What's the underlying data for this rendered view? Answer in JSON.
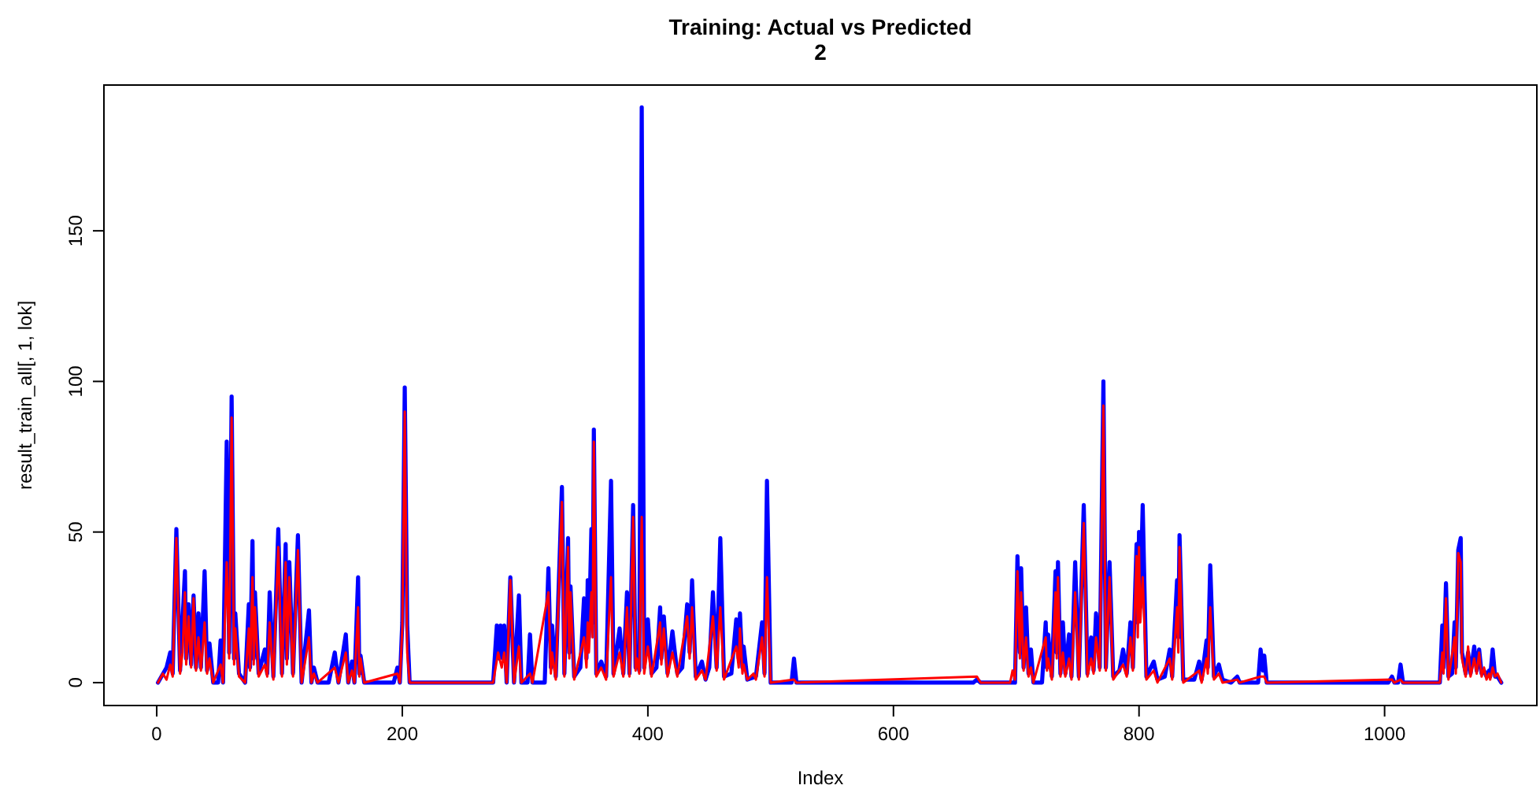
{
  "chart_data": {
    "type": "line",
    "title": "Training: Actual vs Predicted",
    "subtitle": "2",
    "xlabel": "Index",
    "ylabel": "result_train_all[, 1, lok]",
    "xlim": [
      -43,
      1124
    ],
    "ylim": [
      -7.6,
      198.4
    ],
    "xticks": [
      0,
      200,
      400,
      600,
      800,
      1000
    ],
    "yticks": [
      0,
      50,
      100,
      150
    ],
    "grid": false,
    "marker": "none",
    "line_style": "solid",
    "series": [
      {
        "color": "#0000ff",
        "x": [
          1,
          8,
          11,
          13,
          16,
          19,
          23,
          24,
          26,
          28,
          30,
          32,
          34,
          36,
          39,
          41,
          43,
          46,
          50,
          52,
          54,
          57,
          59,
          61,
          63,
          64,
          67,
          72,
          75,
          76,
          78,
          79,
          80,
          83,
          88,
          90,
          92,
          95,
          99,
          102,
          105,
          106,
          108,
          111,
          115,
          118,
          124,
          126,
          128,
          131,
          140,
          145,
          148,
          154,
          156,
          159,
          161,
          164,
          165,
          166,
          169,
          193,
          196,
          198,
          200,
          202,
          204,
          206,
          274,
          277,
          279,
          280,
          282,
          283,
          285,
          288,
          291,
          295,
          297,
          302,
          304,
          306,
          316,
          319,
          321,
          322,
          325,
          330,
          332,
          335,
          336,
          337,
          340,
          345,
          348,
          350,
          351,
          352,
          354,
          355,
          356,
          358,
          362,
          366,
          370,
          372,
          377,
          380,
          383,
          385,
          388,
          390,
          391,
          393,
          395,
          397,
          400,
          403,
          407,
          410,
          411,
          413,
          416,
          420,
          424,
          428,
          432,
          434,
          436,
          439,
          444,
          447,
          450,
          453,
          456,
          459,
          462,
          468,
          472,
          474,
          475,
          477,
          478,
          481,
          488,
          493,
          495,
          497,
          500,
          517,
          519,
          521,
          665,
          668,
          671,
          699,
          701,
          703,
          704,
          706,
          708,
          710,
          712,
          714,
          721,
          724,
          725,
          726,
          729,
          732,
          733,
          734,
          736,
          738,
          740,
          743,
          745,
          748,
          751,
          755,
          758,
          761,
          763,
          765,
          768,
          771,
          773,
          776,
          779,
          784,
          787,
          790,
          793,
          795,
          798,
          799,
          800,
          801,
          803,
          806,
          812,
          815,
          821,
          825,
          827,
          831,
          832,
          833,
          836,
          845,
          849,
          851,
          855,
          856,
          858,
          861,
          865,
          868,
          875,
          880,
          882,
          897,
          899,
          901,
          902,
          904,
          1003,
          1006,
          1008,
          1011,
          1013,
          1015,
          1045,
          1047,
          1048,
          1050,
          1052,
          1055,
          1057,
          1058,
          1060,
          1062,
          1063,
          1064,
          1066,
          1068,
          1070,
          1073,
          1075,
          1077,
          1079,
          1081,
          1083,
          1085,
          1086,
          1088,
          1090,
          1092,
          1095
        ],
        "values": [
          0,
          5,
          10,
          3,
          51,
          4,
          37,
          8,
          26,
          6,
          29,
          5,
          23,
          5,
          37,
          4,
          13,
          0,
          0,
          14,
          0,
          80,
          10,
          95,
          8,
          23,
          3,
          0,
          26,
          5,
          47,
          8,
          30,
          3,
          11,
          3,
          30,
          2,
          51,
          3,
          46,
          8,
          40,
          3,
          49,
          0,
          24,
          0,
          5,
          0,
          0,
          10,
          0,
          16,
          0,
          7,
          0,
          35,
          3,
          9,
          0,
          0,
          5,
          0,
          20,
          98,
          19,
          0,
          0,
          19,
          8,
          19,
          8,
          19,
          0,
          35,
          0,
          29,
          0,
          0,
          16,
          0,
          0,
          38,
          5,
          19,
          2,
          65,
          3,
          48,
          10,
          32,
          2,
          5,
          28,
          8,
          34,
          15,
          51,
          20,
          84,
          3,
          7,
          2,
          67,
          3,
          18,
          3,
          30,
          3,
          59,
          5,
          12,
          4,
          191,
          5,
          21,
          3,
          5,
          25,
          8,
          22,
          3,
          17,
          3,
          5,
          26,
          10,
          34,
          2,
          7,
          1,
          5,
          30,
          5,
          48,
          2,
          3,
          21,
          8,
          23,
          5,
          12,
          1,
          2,
          20,
          3,
          67,
          0,
          0,
          8,
          0,
          0,
          1,
          0,
          0,
          42,
          10,
          38,
          5,
          25,
          3,
          11,
          0,
          0,
          20,
          5,
          16,
          2,
          37,
          10,
          40,
          3,
          20,
          3,
          16,
          2,
          40,
          2,
          59,
          3,
          15,
          4,
          23,
          5,
          100,
          5,
          40,
          2,
          4,
          11,
          3,
          20,
          5,
          46,
          20,
          50,
          25,
          59,
          2,
          7,
          1,
          2,
          11,
          2,
          34,
          15,
          49,
          1,
          1,
          7,
          1,
          14,
          5,
          39,
          2,
          6,
          1,
          0,
          2,
          0,
          0,
          11,
          4,
          9,
          0,
          0,
          2,
          0,
          0,
          6,
          0,
          0,
          19,
          5,
          33,
          2,
          3,
          20,
          5,
          44,
          48,
          10,
          8,
          3,
          10,
          3,
          12,
          4,
          11,
          3,
          4,
          2,
          4,
          2,
          11,
          2,
          2,
          0
        ]
      },
      {
        "color": "#ff0000",
        "x": [
          1,
          5,
          8,
          11,
          13,
          16,
          19,
          21,
          23,
          24,
          26,
          28,
          30,
          32,
          34,
          36,
          39,
          41,
          43,
          46,
          52,
          54,
          57,
          59,
          61,
          63,
          64,
          67,
          72,
          75,
          76,
          78,
          79,
          80,
          83,
          88,
          90,
          92,
          95,
          99,
          102,
          105,
          106,
          108,
          111,
          115,
          118,
          124,
          126,
          128,
          131,
          145,
          148,
          154,
          156,
          159,
          161,
          164,
          165,
          166,
          169,
          196,
          198,
          200,
          202,
          204,
          206,
          274,
          278,
          281,
          283,
          285,
          288,
          291,
          295,
          297,
          304,
          306,
          319,
          321,
          322,
          325,
          330,
          332,
          335,
          336,
          337,
          340,
          348,
          350,
          351,
          352,
          354,
          355,
          356,
          358,
          362,
          366,
          370,
          372,
          377,
          380,
          383,
          385,
          388,
          390,
          391,
          393,
          395,
          397,
          400,
          403,
          410,
          411,
          413,
          416,
          420,
          424,
          432,
          434,
          436,
          439,
          444,
          447,
          453,
          456,
          459,
          462,
          472,
          474,
          475,
          477,
          478,
          481,
          486,
          488,
          493,
          495,
          497,
          500,
          519,
          521,
          668,
          671,
          695,
          697,
          699,
          701,
          703,
          704,
          706,
          708,
          710,
          712,
          714,
          724,
          725,
          726,
          729,
          732,
          733,
          734,
          736,
          738,
          740,
          743,
          745,
          748,
          751,
          755,
          758,
          761,
          763,
          765,
          768,
          771,
          773,
          776,
          779,
          787,
          790,
          793,
          795,
          798,
          799,
          800,
          801,
          803,
          806,
          812,
          815,
          825,
          827,
          831,
          832,
          833,
          836,
          849,
          851,
          855,
          856,
          858,
          861,
          865,
          868,
          880,
          882,
          899,
          902,
          904,
          1006,
          1008,
          1013,
          1015,
          1045,
          1047,
          1048,
          1050,
          1052,
          1057,
          1058,
          1060,
          1062,
          1063,
          1064,
          1066,
          1068,
          1070,
          1073,
          1075,
          1077,
          1079,
          1081,
          1083,
          1085,
          1086,
          1088,
          1090,
          1092,
          1095
        ],
        "values": [
          0,
          3,
          1,
          6,
          2,
          48,
          3,
          10,
          30,
          6,
          22,
          5,
          28,
          4,
          15,
          4,
          20,
          3,
          8,
          0,
          6,
          0,
          40,
          8,
          88,
          6,
          18,
          2,
          0,
          18,
          4,
          35,
          6,
          25,
          2,
          6,
          2,
          20,
          1,
          45,
          2,
          40,
          6,
          35,
          2,
          44,
          0,
          15,
          0,
          3,
          0,
          5,
          0,
          10,
          0,
          4,
          0,
          25,
          2,
          8,
          0,
          3,
          0,
          18,
          90,
          10,
          0,
          0,
          10,
          5,
          10,
          0,
          34,
          0,
          12,
          0,
          3,
          0,
          30,
          3,
          10,
          1,
          60,
          2,
          45,
          8,
          30,
          1,
          15,
          5,
          20,
          10,
          30,
          15,
          80,
          2,
          5,
          1,
          35,
          2,
          10,
          2,
          25,
          2,
          55,
          4,
          8,
          3,
          55,
          3,
          12,
          2,
          20,
          6,
          18,
          2,
          10,
          2,
          22,
          8,
          25,
          1,
          4,
          1,
          22,
          4,
          25,
          1,
          12,
          5,
          18,
          3,
          6,
          1,
          3,
          1,
          15,
          2,
          35,
          0,
          1,
          0,
          2,
          0,
          0,
          4,
          1,
          37,
          8,
          30,
          4,
          15,
          2,
          5,
          0,
          15,
          4,
          8,
          1,
          30,
          8,
          35,
          2,
          10,
          2,
          8,
          1,
          30,
          1,
          53,
          2,
          8,
          3,
          15,
          4,
          92,
          4,
          35,
          1,
          6,
          2,
          15,
          4,
          42,
          15,
          45,
          20,
          35,
          1,
          4,
          0,
          8,
          1,
          25,
          10,
          45,
          0,
          4,
          0,
          8,
          3,
          25,
          1,
          3,
          0,
          1,
          0,
          2,
          2,
          0,
          1,
          0,
          1,
          0,
          0,
          10,
          3,
          28,
          1,
          15,
          3,
          43,
          40,
          8,
          6,
          2,
          12,
          2,
          8,
          3,
          10,
          2,
          5,
          1,
          3,
          1,
          5,
          2,
          3,
          0
        ]
      }
    ]
  }
}
